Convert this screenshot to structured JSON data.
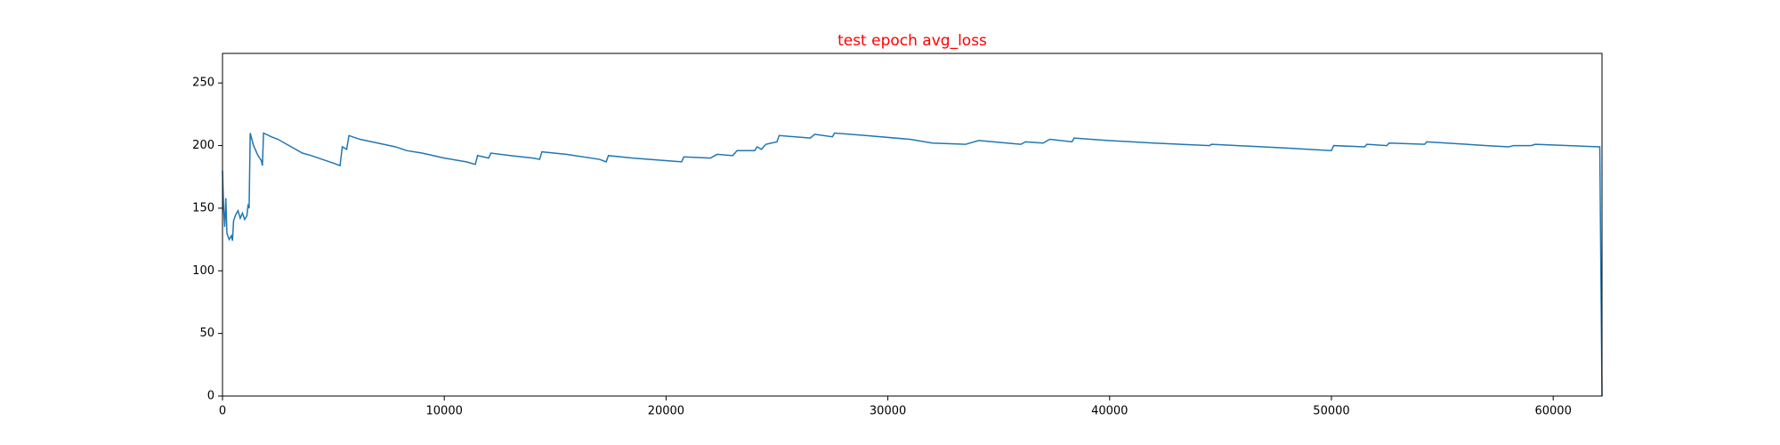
{
  "chart_data": {
    "type": "line",
    "title": "test epoch avg_loss",
    "title_color": "#ff0000",
    "color": "#1f77b4",
    "x": [
      0,
      50,
      100,
      150,
      200,
      300,
      400,
      450,
      500,
      600,
      700,
      800,
      900,
      1000,
      1100,
      1150,
      1200,
      1250,
      1400,
      1600,
      1750,
      1800,
      1850,
      2200,
      2500,
      2800,
      3200,
      3600,
      4000,
      4500,
      5000,
      5300,
      5400,
      5600,
      5700,
      6200,
      7000,
      7800,
      8300,
      9000,
      10000,
      11000,
      11400,
      11500,
      12000,
      12100,
      13000,
      14000,
      14300,
      14400,
      15500,
      17000,
      17300,
      17400,
      18500,
      20000,
      20700,
      20800,
      22000,
      22300,
      23000,
      23200,
      24000,
      24100,
      24300,
      24500,
      25000,
      25100,
      26500,
      26700,
      27500,
      27600,
      29000,
      31000,
      32000,
      33500,
      34100,
      36000,
      36200,
      37000,
      37300,
      38300,
      38400,
      40000,
      42000,
      44500,
      44600,
      48000,
      50000,
      50100,
      51500,
      51600,
      52500,
      52600,
      54200,
      54300,
      57000,
      58000,
      58200,
      59000,
      59200,
      62100,
      62200
    ],
    "values": [
      180,
      150,
      135,
      158,
      130,
      125,
      128,
      124,
      140,
      145,
      148,
      142,
      146,
      141,
      144,
      152,
      150,
      210,
      200,
      192,
      188,
      184,
      210,
      207,
      205,
      202,
      198,
      194,
      192,
      189,
      186,
      184,
      199,
      197,
      208,
      205,
      202,
      199,
      196,
      194,
      190,
      187,
      185,
      192,
      190,
      194,
      192,
      190,
      189,
      195,
      193,
      189,
      187,
      192,
      190,
      188,
      187,
      191,
      190,
      193,
      192,
      196,
      196,
      199,
      197,
      201,
      203,
      208,
      206,
      209,
      207,
      210,
      208,
      205,
      202,
      201,
      204,
      201,
      203,
      202,
      205,
      203,
      206,
      204,
      202,
      200,
      201,
      198,
      196,
      200,
      199,
      201,
      200,
      202,
      201,
      203,
      200,
      199,
      200,
      200,
      201,
      199,
      0
    ],
    "xlim": [
      0,
      62200
    ],
    "ylim": [
      0,
      273.6
    ],
    "xticks": [
      0,
      10000,
      20000,
      30000,
      40000,
      50000,
      60000
    ],
    "yticks": [
      0,
      50,
      100,
      150,
      200,
      250
    ]
  }
}
